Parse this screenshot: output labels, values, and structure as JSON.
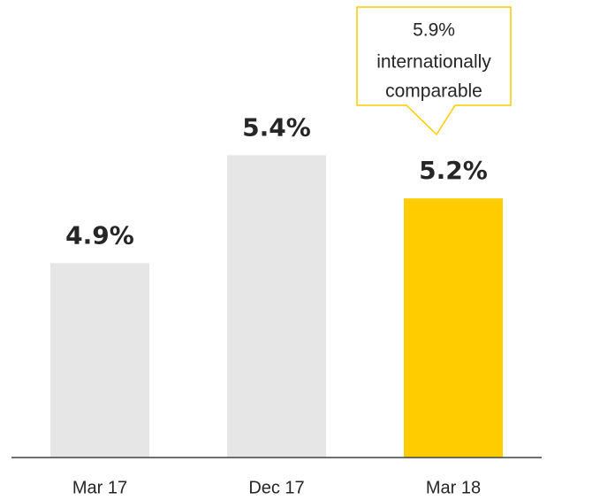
{
  "chart_data": {
    "type": "bar",
    "categories": [
      "Mar 17",
      "Dec 17",
      "Mar 18"
    ],
    "values": [
      4.9,
      5.4,
      5.2
    ],
    "value_labels": [
      "4.9%",
      "5.4%",
      "5.2%"
    ],
    "colors": [
      "#e6e6e6",
      "#e6e6e6",
      "#ffcc00"
    ],
    "ylim": [
      4,
      6.1
    ],
    "annotation": {
      "lines": [
        "5.9%",
        "internationally",
        "comparable"
      ],
      "color": "#ffcc00"
    }
  }
}
